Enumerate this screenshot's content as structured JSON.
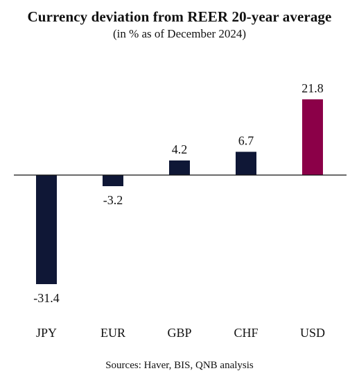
{
  "chart_data": {
    "type": "bar",
    "title": "Currency deviation from REER 20-year average",
    "subtitle": "(in % as of December 2024)",
    "categories": [
      "JPY",
      "EUR",
      "GBP",
      "CHF",
      "USD"
    ],
    "values": [
      -31.4,
      -3.2,
      4.2,
      6.7,
      21.8
    ],
    "value_labels": [
      "-31.4",
      "-3.2",
      "4.2",
      "6.7",
      "21.8"
    ],
    "colors": [
      "#0f1736",
      "#0f1736",
      "#0f1736",
      "#0f1736",
      "#8b0048"
    ],
    "xlabel": "",
    "ylabel": "",
    "grid": false,
    "legend": "none"
  },
  "source": "Sources: Haver, BIS, QNB analysis"
}
